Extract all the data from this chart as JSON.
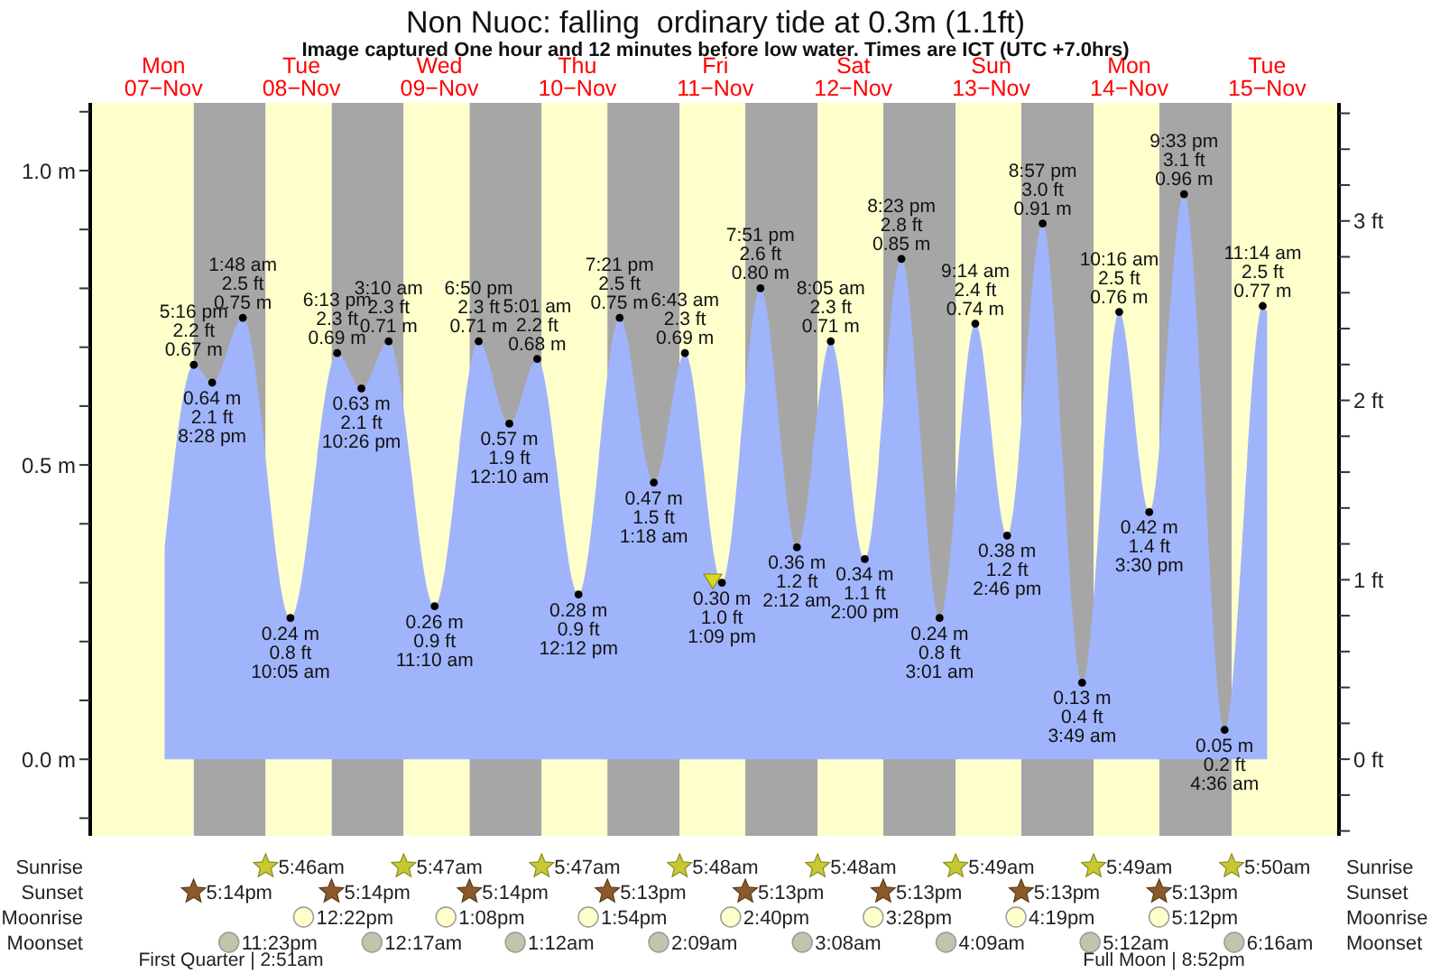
{
  "chart_data": {
    "type": "area",
    "title": "Non Nuoc: falling  ordinary tide at 0.3m (1.1ft)",
    "subtitle": "Image captured One hour and 12 minutes before low water. Times are ICT (UTC +7.0hrs)",
    "color": "#a0b4fc",
    "marker": "circle",
    "x": [
      "--11-07T12:12",
      "--11-07T17:16",
      "--11-07T20:28",
      "--11-08T01:48",
      "--11-08T10:05",
      "--11-08T18:13",
      "--11-08T22:26",
      "--11-09T03:10",
      "--11-09T11:10",
      "--11-09T18:50",
      "--11-10T00:10",
      "--11-10T05:01",
      "--11-10T12:12",
      "--11-10T19:21",
      "--11-11T01:18",
      "--11-11T06:43",
      "--11-11T13:09",
      "--11-11T19:51",
      "--11-12T02:12",
      "--11-12T08:05",
      "--11-12T14:00",
      "--11-12T20:23",
      "--11-13T03:01",
      "--11-13T09:14",
      "--11-13T14:46",
      "--11-13T20:57",
      "--11-14T03:49",
      "--11-14T10:16",
      "--11-14T15:30",
      "--11-14T21:33",
      "--11-15T04:36",
      "--11-15T11:14",
      "--11-15T12:00"
    ],
    "values": [
      0.36,
      0.67,
      0.64,
      0.75,
      0.24,
      0.69,
      0.63,
      0.71,
      0.26,
      0.71,
      0.57,
      0.68,
      0.28,
      0.75,
      0.47,
      0.69,
      0.3,
      0.8,
      0.36,
      0.71,
      0.34,
      0.85,
      0.24,
      0.74,
      0.38,
      0.91,
      0.13,
      0.76,
      0.42,
      0.96,
      0.05,
      0.77,
      0.76
    ],
    "value_labels": [
      null,
      "5:16 pm\n2.2 ft\n0.67 m",
      "0.64 m\n2.1 ft\n8:28 pm",
      "1:48 am\n2.5 ft\n0.75 m",
      "0.24 m\n0.8 ft\n10:05 am",
      "6:13 pm\n2.3 ft\n0.69 m",
      "0.63 m\n2.1 ft\n10:26 pm",
      "3:10 am\n2.3 ft\n0.71 m",
      "0.26 m\n0.9 ft\n11:10 am",
      "6:50 pm\n2.3 ft\n0.71 m",
      "0.57 m\n1.9 ft\n12:10 am",
      "5:01 am\n2.2 ft\n0.68 m",
      "0.28 m\n0.9 ft\n12:12 pm",
      "7:21 pm\n2.5 ft\n0.75 m",
      "0.47 m\n1.5 ft\n1:18 am",
      "6:43 am\n2.3 ft\n0.69 m",
      "0.30 m\n1.0 ft\n1:09 pm",
      "7:51 pm\n2.6 ft\n0.80 m",
      "0.36 m\n1.2 ft\n2:12 am",
      "8:05 am\n2.3 ft\n0.71 m",
      "0.34 m\n1.1 ft\n2:00 pm",
      "8:23 pm\n2.8 ft\n0.85 m",
      "0.24 m\n0.8 ft\n3:01 am",
      "9:14 am\n2.4 ft\n0.74 m",
      "0.38 m\n1.2 ft\n2:46 pm",
      "8:57 pm\n3.0 ft\n0.91 m",
      "0.13 m\n0.4 ft\n3:49 am",
      "10:16 am\n2.5 ft\n0.76 m",
      "0.42 m\n1.4 ft\n3:30 pm",
      "9:33 pm\n3.1 ft\n0.96 m",
      "0.05 m\n0.2 ft\n4:36 am",
      "11:14 am\n2.5 ft\n0.77 m",
      null
    ],
    "xlim": [
      "--11-06T23:15",
      "--11-16T00:30"
    ],
    "xticks": [
      {
        "value": "--11-07T12:00",
        "label": "Mon\n07−Nov"
      },
      {
        "value": "--11-08T12:00",
        "label": "Tue\n08−Nov"
      },
      {
        "value": "--11-09T12:00",
        "label": "Wed\n09−Nov"
      },
      {
        "value": "--11-10T12:00",
        "label": "Thu\n10−Nov"
      },
      {
        "value": "--11-11T12:00",
        "label": "Fri\n11−Nov"
      },
      {
        "value": "--11-12T12:00",
        "label": "Sat\n12−Nov"
      },
      {
        "value": "--11-13T12:00",
        "label": "Sun\n13−Nov"
      },
      {
        "value": "--11-14T12:00",
        "label": "Mon\n14−Nov"
      },
      {
        "value": "--11-15T12:00",
        "label": "Tue\n15−Nov"
      }
    ],
    "ylim": [
      -0.13,
      1.115
    ],
    "yticks": [
      {
        "value": -0.1,
        "label": null
      },
      {
        "value": 0,
        "label": "0.0 m"
      },
      {
        "value": 0.1,
        "label": null
      },
      {
        "value": 0.2,
        "label": null
      },
      {
        "value": 0.3,
        "label": null
      },
      {
        "value": 0.4,
        "label": null
      },
      {
        "value": 0.5,
        "label": "0.5 m"
      },
      {
        "value": 0.6,
        "label": null
      },
      {
        "value": 0.7,
        "label": null
      },
      {
        "value": 0.8,
        "label": null
      },
      {
        "value": 0.9,
        "label": null
      },
      {
        "value": 1,
        "label": "1.0 m"
      },
      {
        "value": 1.1,
        "label": null
      }
    ],
    "y2lim": [
      -0.427,
      3.658
    ],
    "y2ticks": [
      {
        "value": -0.4,
        "label": null
      },
      {
        "value": -0.2,
        "label": null
      },
      {
        "value": 0,
        "label": "0 ft"
      },
      {
        "value": 0.2,
        "label": null
      },
      {
        "value": 0.4,
        "label": null
      },
      {
        "value": 0.6,
        "label": null
      },
      {
        "value": 0.8,
        "label": null
      },
      {
        "value": 1,
        "label": "1 ft"
      },
      {
        "value": 1.2,
        "label": null
      },
      {
        "value": 1.4,
        "label": null
      },
      {
        "value": 1.6,
        "label": null
      },
      {
        "value": 1.8,
        "label": null
      },
      {
        "value": 2,
        "label": "2 ft"
      },
      {
        "value": 2.2,
        "label": null
      },
      {
        "value": 2.4,
        "label": null
      },
      {
        "value": 2.6,
        "label": null
      },
      {
        "value": 2.8,
        "label": null
      },
      {
        "value": 3,
        "label": "3 ft"
      },
      {
        "value": 3.2,
        "label": null
      },
      {
        "value": 3.4,
        "label": null
      },
      {
        "value": 3.6,
        "label": null
      }
    ],
    "bands": [
      {
        "axis": "x",
        "from": "--11-07T17:14",
        "to": "--11-08T05:46",
        "color": "#a6a6a6"
      },
      {
        "axis": "x",
        "from": "--11-08T17:14",
        "to": "--11-09T05:47",
        "color": "#a6a6a6"
      },
      {
        "axis": "x",
        "from": "--11-09T17:14",
        "to": "--11-10T05:47",
        "color": "#a6a6a6"
      },
      {
        "axis": "x",
        "from": "--11-10T17:13",
        "to": "--11-11T05:48",
        "color": "#a6a6a6"
      },
      {
        "axis": "x",
        "from": "--11-11T17:13",
        "to": "--11-12T05:48",
        "color": "#a6a6a6"
      },
      {
        "axis": "x",
        "from": "--11-12T17:13",
        "to": "--11-13T05:49",
        "color": "#a6a6a6"
      },
      {
        "axis": "x",
        "from": "--11-13T17:13",
        "to": "--11-14T05:49",
        "color": "#a6a6a6"
      },
      {
        "axis": "x",
        "from": "--11-14T17:13",
        "to": "--11-15T05:50",
        "color": "#a6a6a6"
      },
      {
        "axis": "x",
        "from": "--11-06T23:15",
        "to": "--11-07T17:14",
        "color": "#ffffcc"
      },
      {
        "axis": "x",
        "from": "--11-08T05:46",
        "to": "--11-08T17:14",
        "color": "#ffffcc"
      },
      {
        "axis": "x",
        "from": "--11-09T05:47",
        "to": "--11-09T17:14",
        "color": "#ffffcc"
      },
      {
        "axis": "x",
        "from": "--11-10T05:47",
        "to": "--11-10T17:13",
        "color": "#ffffcc"
      },
      {
        "axis": "x",
        "from": "--11-11T05:48",
        "to": "--11-11T17:13",
        "color": "#ffffcc"
      },
      {
        "axis": "x",
        "from": "--11-12T05:48",
        "to": "--11-12T17:13",
        "color": "#ffffcc"
      },
      {
        "axis": "x",
        "from": "--11-13T05:49",
        "to": "--11-13T17:13",
        "color": "#ffffcc"
      },
      {
        "axis": "x",
        "from": "--11-14T05:49",
        "to": "--11-14T17:13",
        "color": "#ffffcc"
      },
      {
        "axis": "x",
        "from": "--11-15T05:50",
        "to": "--11-16T00:30",
        "color": "#ffffcc"
      }
    ],
    "annotations": [
      "First Quarter | 2:51am",
      "Full Moon | 8:52pm",
      "Sunrise",
      "5:46am",
      "5:47am",
      "5:47am",
      "5:48am",
      "5:48am",
      "5:49am",
      "5:49am",
      "5:50am",
      "Sunset",
      "5:14pm",
      "5:14pm",
      "5:14pm",
      "5:13pm",
      "5:13pm",
      "5:13pm",
      "5:13pm",
      "5:13pm",
      "Moonrise",
      "12:22pm",
      "1:08pm",
      "1:54pm",
      "2:40pm",
      "3:28pm",
      "4:19pm",
      "5:12pm",
      "Moonset",
      "11:23pm",
      "12:17am",
      "1:12am",
      "2:09am",
      "3:08am",
      "4:09am",
      "5:12am",
      "6:16am"
    ]
  }
}
